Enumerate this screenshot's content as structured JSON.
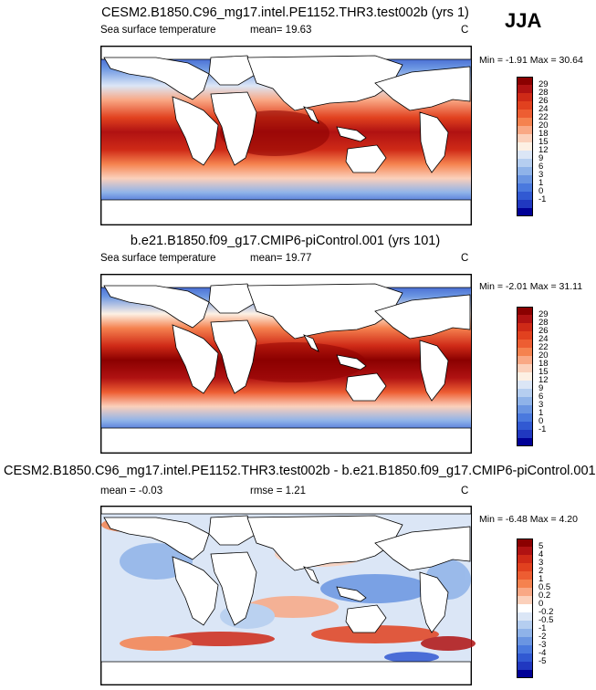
{
  "season": "JJA",
  "panels": [
    {
      "title": "CESM2.B1850.C96_mg17.intel.PE1152.THR3.test002b (yrs 1)",
      "field": "Sea surface temperature",
      "stat": "mean=  19.63",
      "units": "C",
      "minmax": "Min =  -1.91 Max =  30.64"
    },
    {
      "title": "b.e21.B1850.f09_g17.CMIP6-piControl.001 (yrs 101)",
      "field": "Sea surface temperature",
      "stat": "mean=  19.77",
      "units": "C",
      "minmax": "Min =  -2.01 Max =  31.11"
    },
    {
      "title": "CESM2.B1850.C96_mg17.intel.PE1152.THR3.test002b - b.e21.B1850.f09_g17.CMIP6-piControl.001",
      "field": "mean =  -0.03",
      "stat": "rmse =   1.21",
      "units": "C",
      "minmax": "Min =  -6.48 Max =    4.20"
    }
  ],
  "colorbars": {
    "sst": {
      "labels": [
        "29",
        "28",
        "26",
        "24",
        "22",
        "20",
        "18",
        "15",
        "12",
        "9",
        "6",
        "3",
        "1",
        "0",
        "-1"
      ],
      "colors": [
        "#8b0000",
        "#b01212",
        "#cf2a17",
        "#e1411f",
        "#ed5d32",
        "#f5824f",
        "#f9a885",
        "#fbd0bb",
        "#fdf0e4",
        "#dbe6f6",
        "#b5cef0",
        "#8fb3e9",
        "#6a95e2",
        "#4a79de",
        "#3159d2",
        "#2038c0",
        "#000096"
      ]
    },
    "diff": {
      "labels": [
        "5",
        "4",
        "3",
        "2",
        "1",
        "0.5",
        "0.2",
        "0",
        "-0.2",
        "-0.5",
        "-1",
        "-2",
        "-3",
        "-4",
        "-5"
      ],
      "colors": [
        "#8b0000",
        "#b01212",
        "#cf2a17",
        "#e1411f",
        "#ed5d32",
        "#f5824f",
        "#f9a885",
        "#fbd0bb",
        "#ffffff",
        "#dbe6f6",
        "#b5cef0",
        "#8fb3e9",
        "#6a95e2",
        "#4a79de",
        "#3159d2",
        "#2038c0",
        "#000096"
      ]
    }
  }
}
